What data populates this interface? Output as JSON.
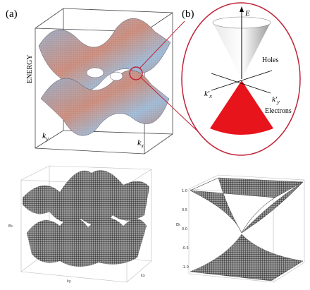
{
  "panel_a": {
    "label": "(a)",
    "axis_energy": "ENERGY",
    "ky": {
      "base": "k",
      "sub": "y"
    },
    "kx": {
      "base": "k",
      "sub": "x"
    }
  },
  "panel_b": {
    "label": "(b)",
    "energy": "E",
    "holes": "Holes",
    "electrons": "Electrons",
    "kx": {
      "base": "k'",
      "sub": "x"
    },
    "ky": {
      "base": "k'",
      "sub": "y"
    }
  },
  "panel_c": {
    "z_label": "Ek",
    "x_label": "kx",
    "y_label": "ky"
  },
  "panel_d": {
    "z_label": "Ek",
    "zticks": [
      "1.0",
      "0.5",
      "0.0",
      "-0.5",
      "-1.0"
    ]
  }
}
